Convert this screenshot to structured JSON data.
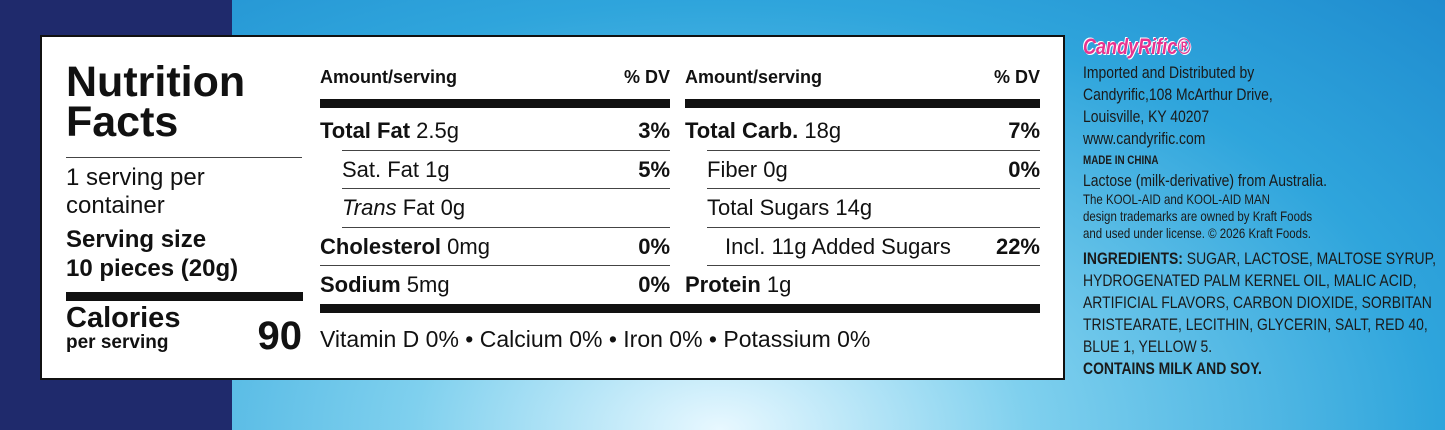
{
  "panel": {
    "title": "Nutrition Facts",
    "servings": "1 serving per container",
    "serving_size_label": "Serving size",
    "serving_size": "10 pieces (20g)",
    "calories_label": "Calories",
    "calories_sub": "per serving",
    "calories": "90",
    "columns": [
      {
        "amount_header": "Amount/serving",
        "dv_header": "% DV",
        "rows": [
          {
            "name": "Total Fat",
            "amount": "2.5g",
            "dv": "3%",
            "bold": true,
            "indent": 0
          },
          {
            "name": "Sat. Fat",
            "amount": "1g",
            "dv": "5%",
            "bold": false,
            "indent": 1
          },
          {
            "italic": "Trans",
            "name": "Fat",
            "amount": "0g",
            "bold": false,
            "indent": 1
          },
          {
            "name": "Cholesterol",
            "amount": "0mg",
            "dv": "0%",
            "bold": true,
            "indent": 0
          },
          {
            "name": "Sodium",
            "amount": "5mg",
            "dv": "0%",
            "bold": true,
            "indent": 0
          }
        ]
      },
      {
        "amount_header": "Amount/serving",
        "dv_header": "% DV",
        "rows": [
          {
            "name": "Total Carb.",
            "amount": "18g",
            "dv": "7%",
            "bold": true,
            "indent": 0
          },
          {
            "name": "Fiber",
            "amount": "0g",
            "dv": "0%",
            "bold": false,
            "indent": 1
          },
          {
            "name": "Total Sugars",
            "amount": "14g",
            "bold": false,
            "indent": 1
          },
          {
            "name": "Incl.",
            "amount": "11g Added Sugars",
            "dv": "22%",
            "bold": false,
            "indent": 2
          },
          {
            "name": "Protein",
            "amount": "1g",
            "bold": true,
            "indent": 0
          }
        ]
      }
    ],
    "vitamins": "Vitamin D 0% • Calcium 0% • Iron 0% • Potassium 0%"
  },
  "info": {
    "brand": "CandyRific®",
    "distributor": [
      "Imported and Distributed by",
      "Candyrific,108 McArthur Drive,",
      "Louisville, KY 40207",
      "www.candyrific.com"
    ],
    "origin": "MADE IN CHINA",
    "lactose": "Lactose (milk-derivative) from Australia.",
    "trademark": [
      "The KOOL-AID and KOOL-AID MAN",
      "design trademarks are owned by Kraft Foods",
      "and used under license. © 2026 Kraft Foods."
    ],
    "ingredients_label": "INGREDIENTS:",
    "ingredients": [
      "SUGAR, LACTOSE, MALTOSE SYRUP,",
      "HYDROGENATED PALM KERNEL OIL, MALIC ACID,",
      "ARTIFICIAL FLAVORS, CARBON DIOXIDE, SORBITAN",
      "TRISTEARATE, LECITHIN, GLYCERIN, SALT, RED 40,",
      "BLUE 1, YELLOW 5."
    ],
    "allergens": "CONTAINS MILK AND SOY."
  }
}
